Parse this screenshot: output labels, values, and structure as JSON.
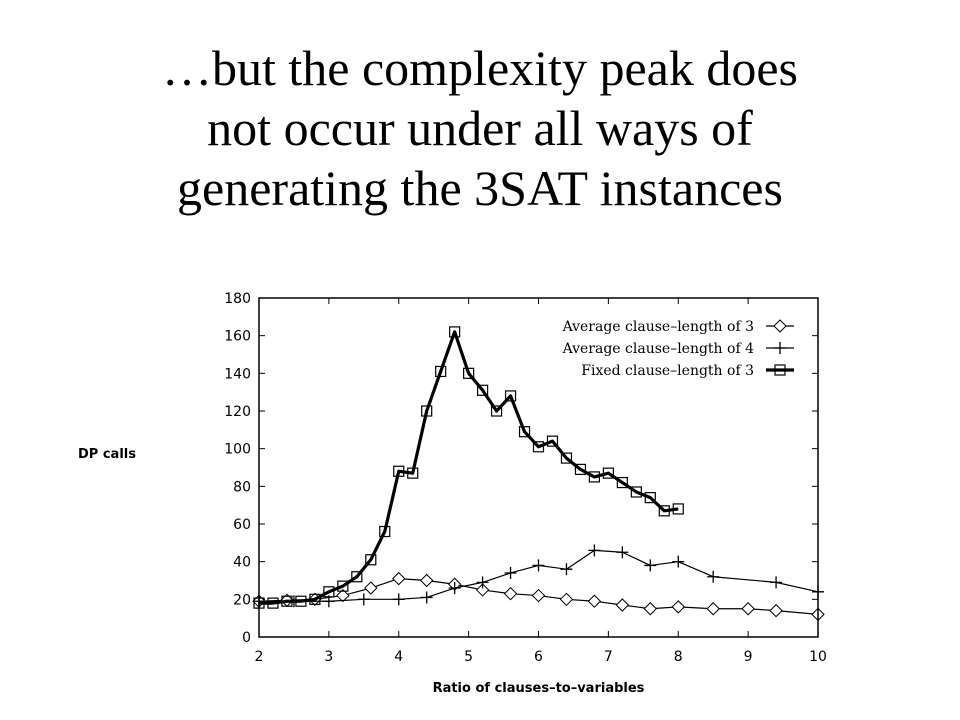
{
  "slide": {
    "title_lines": [
      "…but the complexity peak does",
      "not occur under all ways of",
      "generating the 3SAT instances"
    ]
  },
  "chart_data": {
    "type": "line",
    "xlabel": "Ratio of clauses–to–variables",
    "ylabel": "DP calls",
    "xlim": [
      2,
      10
    ],
    "ylim": [
      0,
      180
    ],
    "xticks": [
      2,
      3,
      4,
      5,
      6,
      7,
      8,
      9,
      10
    ],
    "yticks": [
      0,
      20,
      40,
      60,
      80,
      100,
      120,
      140,
      160,
      180
    ],
    "grid": false,
    "legend_position": "top-right",
    "series": [
      {
        "name": "Average clause–length of 3",
        "marker": "diamond",
        "line_style": "thin",
        "x": [
          2,
          2.4,
          2.8,
          3.2,
          3.6,
          4.0,
          4.4,
          4.8,
          5.2,
          5.6,
          6.0,
          6.4,
          6.8,
          7.2,
          7.6,
          8.0,
          8.5,
          9.0,
          9.4,
          10.0
        ],
        "y": [
          19,
          19.5,
          20,
          22,
          26,
          31,
          30,
          28,
          25,
          23,
          22,
          20,
          19,
          17,
          15,
          16,
          15,
          15,
          14,
          12
        ]
      },
      {
        "name": "Average clause–length of 4",
        "marker": "plus",
        "line_style": "thin",
        "x": [
          2,
          2.5,
          3.0,
          3.5,
          4.0,
          4.4,
          4.8,
          5.2,
          5.6,
          6.0,
          6.4,
          6.8,
          7.2,
          7.6,
          8.0,
          8.5,
          9.4,
          10.0
        ],
        "y": [
          19,
          19,
          19,
          20,
          20,
          21,
          26,
          29,
          34,
          38,
          36,
          46,
          45,
          38,
          40,
          32,
          29,
          24
        ]
      },
      {
        "name": "Fixed clause–length of 3",
        "marker": "square",
        "line_style": "thick",
        "x": [
          2,
          2.2,
          2.4,
          2.6,
          2.8,
          3.0,
          3.2,
          3.4,
          3.6,
          3.8,
          4.0,
          4.2,
          4.4,
          4.6,
          4.8,
          5.0,
          5.2,
          5.4,
          5.6,
          5.8,
          6.0,
          6.2,
          6.4,
          6.6,
          6.8,
          7.0,
          7.2,
          7.4,
          7.6,
          7.8,
          8.0
        ],
        "y": [
          18,
          18,
          19,
          19,
          20,
          24,
          27,
          32,
          41,
          56,
          88,
          87,
          120,
          141,
          162,
          140,
          131,
          120,
          128,
          109,
          101,
          104,
          95,
          89,
          85,
          87,
          82,
          77,
          74,
          67,
          68
        ]
      }
    ]
  }
}
